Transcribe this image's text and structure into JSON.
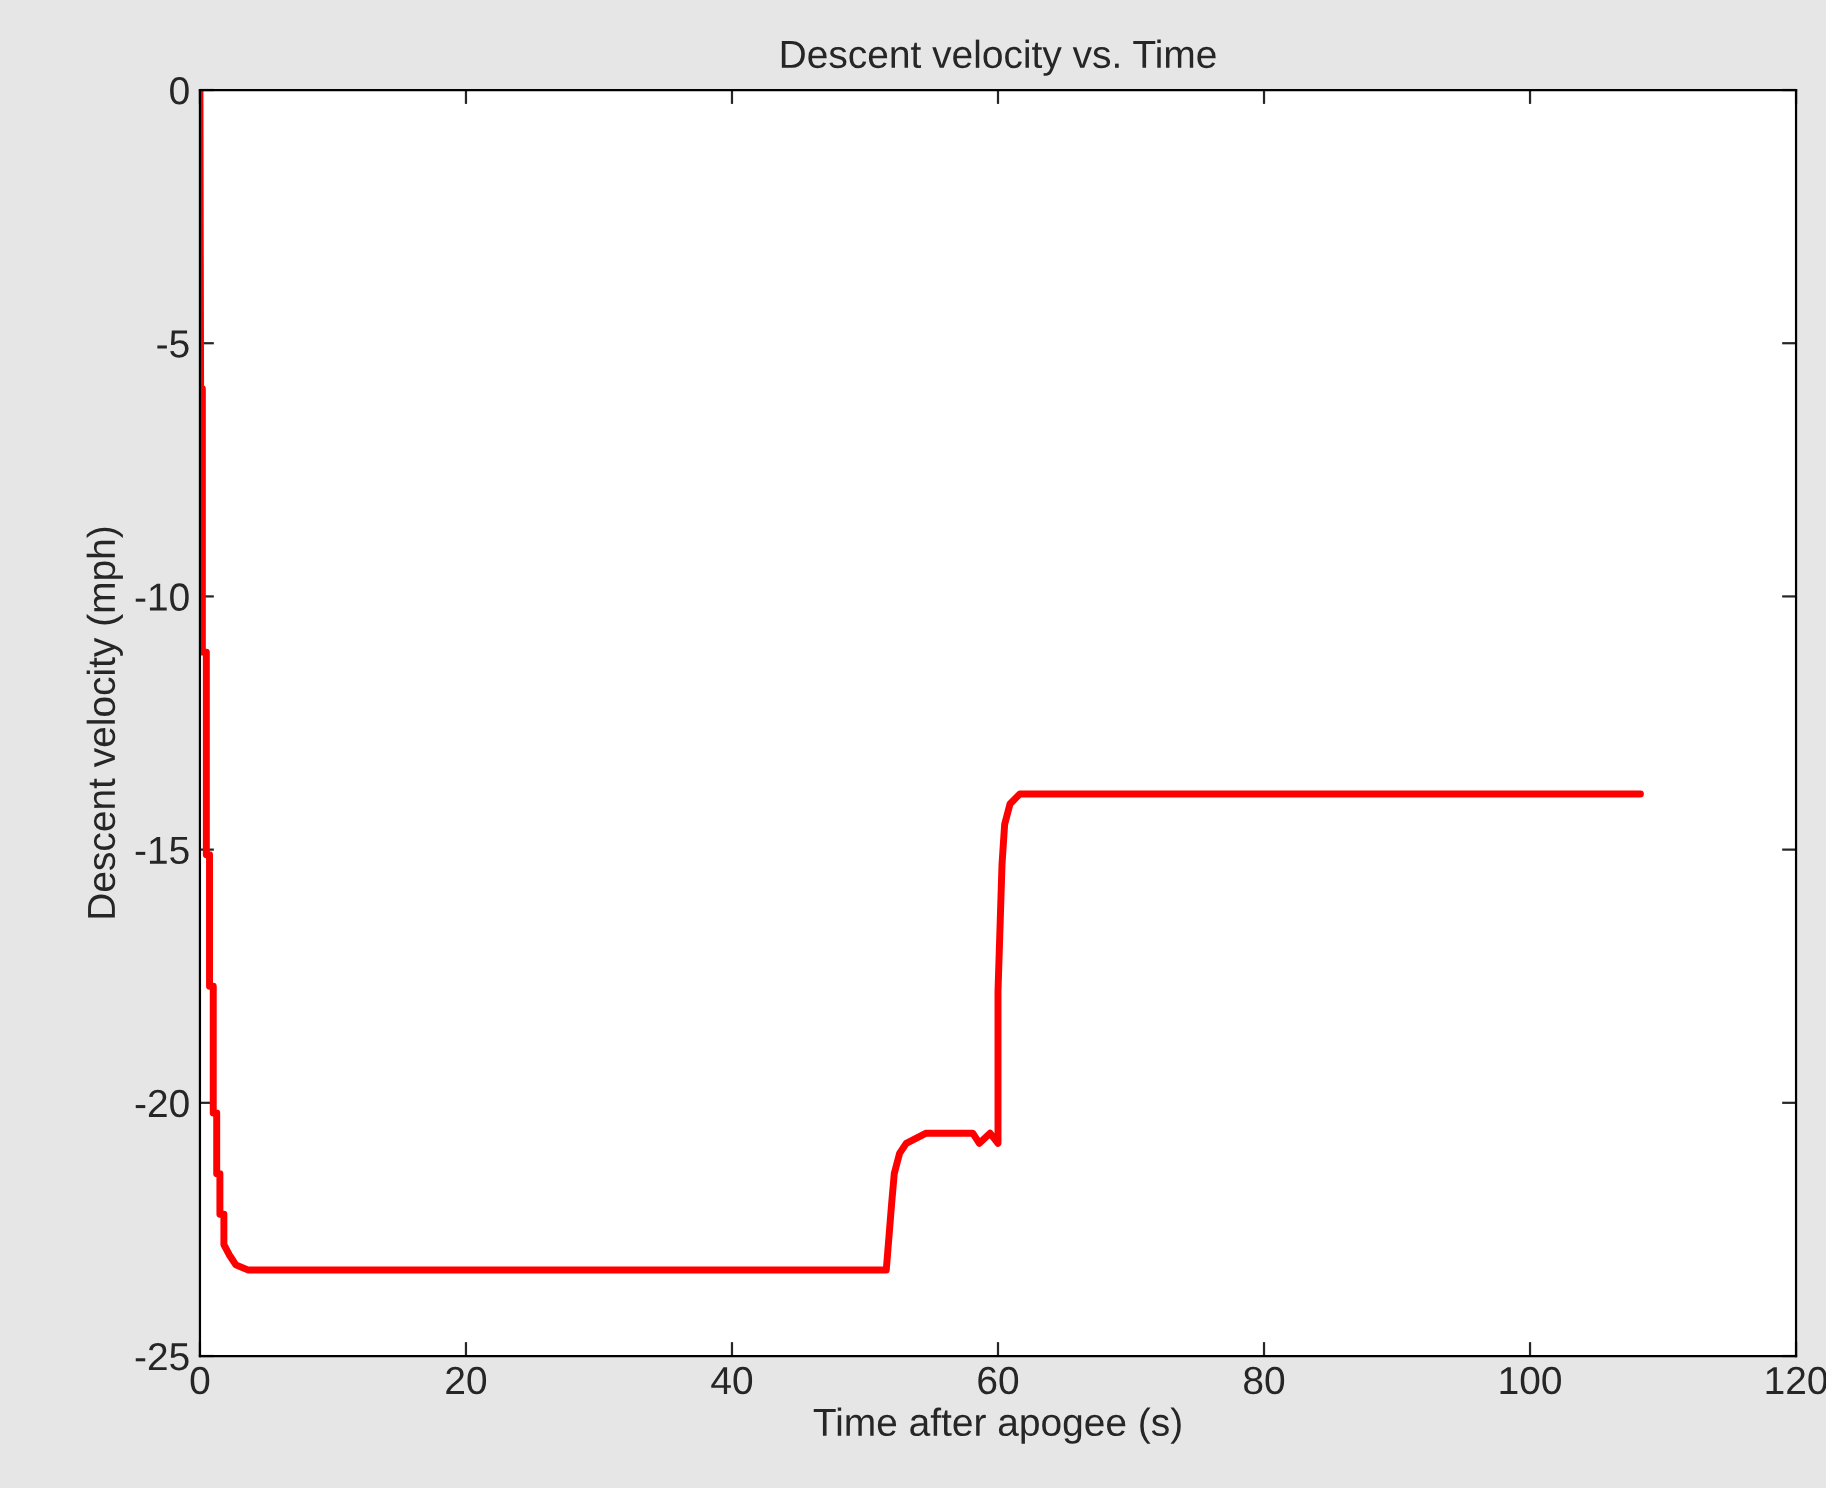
{
  "chart_data": {
    "type": "line",
    "title": "Descent velocity vs. Time",
    "xlabel": "Time after apogee (s)",
    "ylabel": "Descent velocity (mph)",
    "x": [
      0,
      0.05,
      0.18,
      0.18,
      0.48,
      0.48,
      0.72,
      0.72,
      1.0,
      1.0,
      1.26,
      1.26,
      1.5,
      1.5,
      1.8,
      1.8,
      2.2,
      2.7,
      3.6,
      51.6,
      52.0,
      52.2,
      52.6,
      53.1,
      54.6,
      58.1,
      58.6,
      59.4,
      60.0,
      60.0,
      60.3,
      60.5,
      60.9,
      61.65,
      108.3
    ],
    "series": [
      {
        "color": "#ff0000",
        "values": [
          0,
          -5.9,
          -5.9,
          -11.1,
          -11.1,
          -15.1,
          -15.1,
          -17.7,
          -17.7,
          -20.2,
          -20.2,
          -21.4,
          -21.4,
          -22.2,
          -22.2,
          -22.8,
          -23.0,
          -23.2,
          -23.3,
          -23.3,
          -22.0,
          -21.4,
          -21.0,
          -20.8,
          -20.6,
          -20.6,
          -20.8,
          -20.6,
          -20.8,
          -17.8,
          -15.3,
          -14.5,
          -14.1,
          -13.9,
          -13.9
        ]
      }
    ],
    "xlim": [
      0,
      120
    ],
    "xticks": [
      0,
      20,
      40,
      60,
      80,
      100,
      120
    ],
    "ylim": [
      -25,
      0
    ],
    "yticks": [
      -25,
      -20,
      -15,
      -10,
      -5,
      0
    ],
    "grid": false,
    "legend": false,
    "marker": "none",
    "line_style": "solid"
  }
}
